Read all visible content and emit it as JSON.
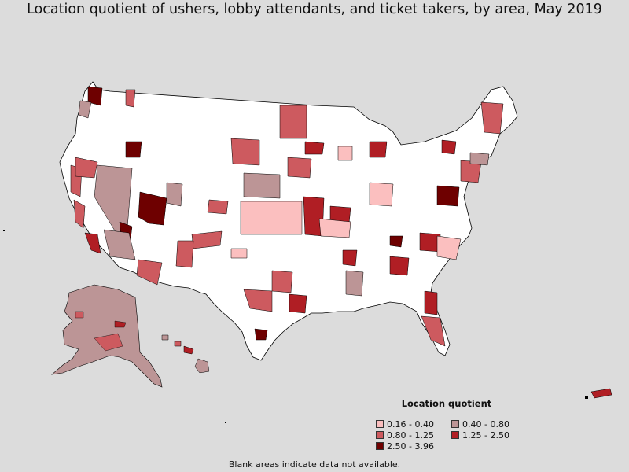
{
  "title": "Location quotient of ushers, lobby attendants, and ticket takers, by area, May 2019",
  "legend": {
    "title": "Location quotient",
    "items": [
      {
        "label": "0.16 - 0.40",
        "color": "#fbbfbf"
      },
      {
        "label": "0.40 - 0.80",
        "color": "#bc9596"
      },
      {
        "label": "0.80 - 1.25",
        "color": "#cd5a5f"
      },
      {
        "label": "1.25 - 2.50",
        "color": "#b01e24"
      },
      {
        "label": "2.50 - 3.96",
        "color": "#6e0000"
      }
    ]
  },
  "footnote": "Blank areas indicate data not available.",
  "colors": {
    "background": "#dcdcdc",
    "no_data": "#ffffff",
    "border": "#000000"
  }
}
